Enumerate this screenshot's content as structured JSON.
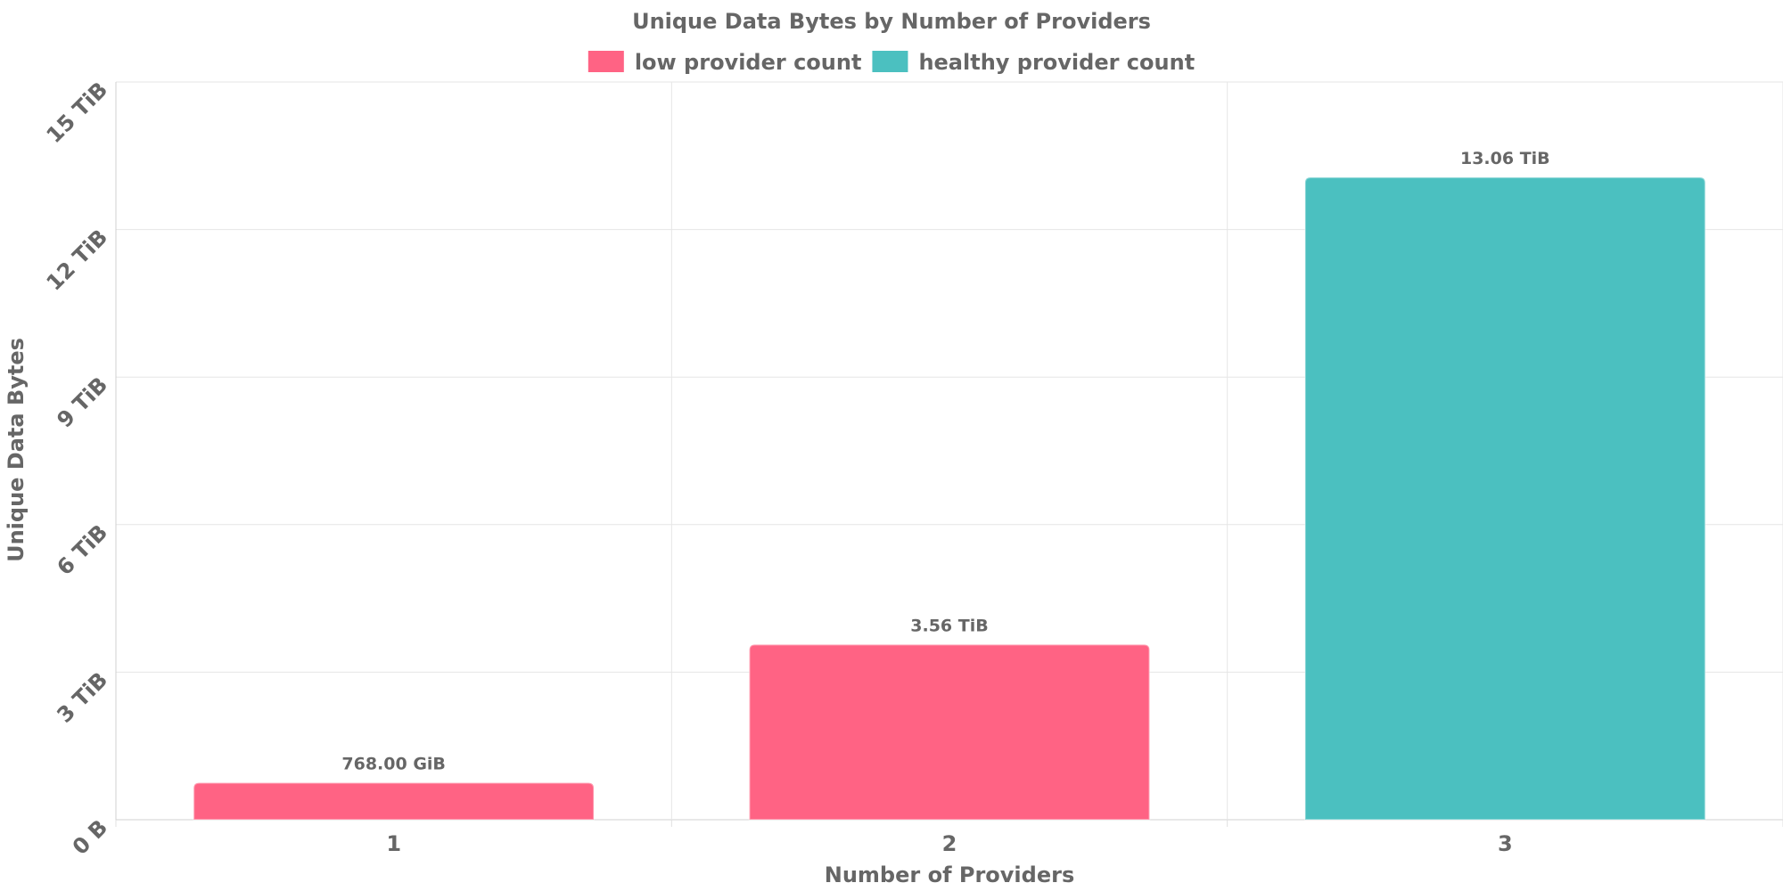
{
  "chart_data": {
    "type": "bar",
    "title": "Unique Data Bytes by Number of Providers",
    "xlabel": "Number of Providers",
    "ylabel": "Unique Data Bytes",
    "categories": [
      "1",
      "2",
      "3"
    ],
    "values_tib": [
      0.75,
      3.56,
      13.06
    ],
    "value_labels": [
      "768.00 GiB",
      "3.56 TiB",
      "13.06 TiB"
    ],
    "bar_series_index": [
      0,
      0,
      1
    ],
    "series": [
      {
        "name": "low provider count",
        "color": "#ff6384"
      },
      {
        "name": "healthy provider count",
        "color": "#4bc0c0"
      }
    ],
    "ylim_tib": [
      0,
      15
    ],
    "y_ticks": [
      {
        "value": 0,
        "label": "0 B"
      },
      {
        "value": 3,
        "label": "3 TiB"
      },
      {
        "value": 6,
        "label": "6 TiB"
      },
      {
        "value": 9,
        "label": "9 TiB"
      },
      {
        "value": 12,
        "label": "12 TiB"
      },
      {
        "value": 15,
        "label": "15 TiB"
      }
    ],
    "grid": true,
    "legend_position": "top"
  }
}
